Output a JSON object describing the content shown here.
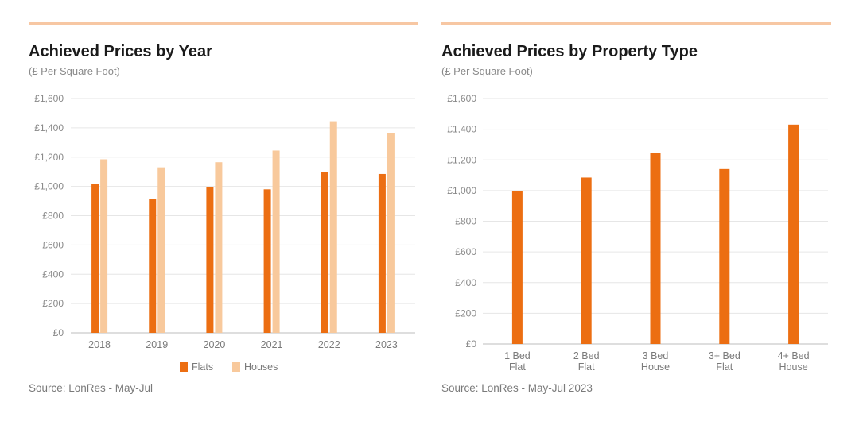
{
  "colors": {
    "rule": "#f7c7a3",
    "flats": "#ec6e12",
    "houses": "#f8c99c",
    "grid": "#e6e6e6",
    "axis": "#bdbdbd",
    "tick_text": "#8a8a8a"
  },
  "left": {
    "title": "Achieved Prices by Year",
    "subtitle": "(£ Per Square Foot)",
    "source": "Source: LonRes - May-Jul"
  },
  "right": {
    "title": "Achieved Prices by Property Type",
    "subtitle": "(£ Per Square Foot)",
    "source": "Source: LonRes - May-Jul 2023"
  },
  "chart_data": [
    {
      "type": "bar",
      "title": "Achieved Prices by Year",
      "subtitle": "(£ Per Square Foot)",
      "categories": [
        "2018",
        "2019",
        "2020",
        "2021",
        "2022",
        "2023"
      ],
      "series": [
        {
          "name": "Flats",
          "color": "#ec6e12",
          "values": [
            1015,
            915,
            995,
            980,
            1100,
            1085
          ]
        },
        {
          "name": "Houses",
          "color": "#f8c99c",
          "values": [
            1185,
            1130,
            1165,
            1245,
            1445,
            1365
          ]
        }
      ],
      "ylim": [
        0,
        1600
      ],
      "yticks": [
        "£0",
        "£200",
        "£400",
        "£600",
        "£800",
        "£1,000",
        "£1,200",
        "£1,400",
        "£1,600"
      ],
      "grid": true,
      "legend": "bottom"
    },
    {
      "type": "bar",
      "title": "Achieved Prices by Property Type",
      "subtitle": "(£ Per Square Foot)",
      "categories": [
        [
          "1 Bed",
          "Flat"
        ],
        [
          "2 Bed",
          "Flat"
        ],
        [
          "3 Bed",
          "House"
        ],
        [
          "3+ Bed",
          "Flat"
        ],
        [
          "4+ Bed",
          "House"
        ]
      ],
      "series": [
        {
          "color": "#ec6e12",
          "values": [
            995,
            1085,
            1245,
            1140,
            1430
          ]
        }
      ],
      "ylim": [
        0,
        1600
      ],
      "yticks": [
        "£0",
        "£200",
        "£400",
        "£600",
        "£800",
        "£1,000",
        "£1,200",
        "£1,400",
        "£1,600"
      ],
      "grid": true,
      "legend": "none"
    }
  ]
}
